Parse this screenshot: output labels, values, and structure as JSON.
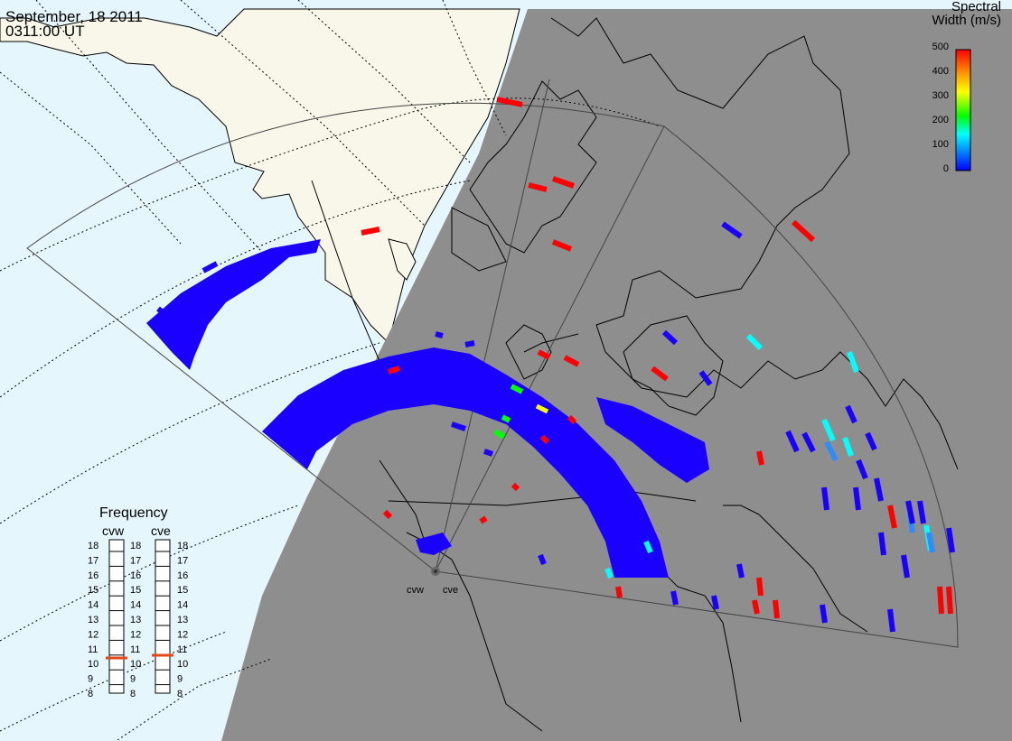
{
  "header": {
    "date": "September, 18 2011",
    "time": "0311:00 UT"
  },
  "legend": {
    "title_line1": "Spectral",
    "title_line2": "Width (m/s)",
    "ticks": [
      "500",
      "400",
      "300",
      "200",
      "100",
      "0"
    ]
  },
  "frequency_panel": {
    "title": "Frequency",
    "radars": [
      {
        "name": "cvw",
        "selected_value": 10.5
      },
      {
        "name": "cve",
        "selected_value": 10.7
      }
    ],
    "scale_left": [
      "18",
      "17",
      "16",
      "15",
      "14",
      "13",
      "12",
      "11",
      "10",
      "9",
      "8"
    ],
    "scale_mid": [
      "18",
      "17",
      "16",
      "15",
      "14",
      "13",
      "12",
      "11",
      "10",
      "9",
      "8"
    ],
    "scale_right": [
      "18",
      "17",
      "16",
      "15",
      "14",
      "13",
      "12",
      "11",
      "10",
      "9",
      "8"
    ]
  },
  "radar_sites": {
    "west": "cvw",
    "east": "cve"
  },
  "colors": {
    "day_ocean": "#e6f6fd",
    "day_land": "#f8f7ea",
    "night": "#8e8e8e",
    "blue": "#1a00ff",
    "red": "#ff0000",
    "cyan": "#00ffff",
    "lightblue": "#2f8cff",
    "green": "#00ff00",
    "yellow": "#ffff00"
  }
}
